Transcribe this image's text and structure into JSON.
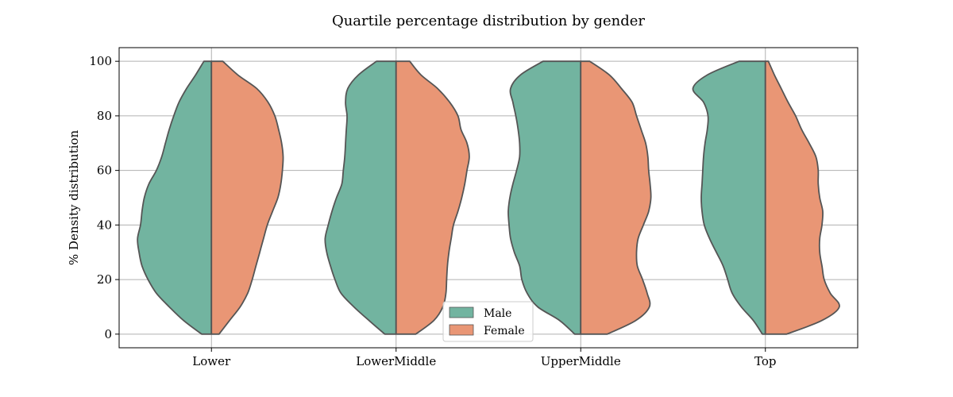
{
  "chart_data": {
    "type": "split-violin",
    "title": "Quartile percentage distribution by gender",
    "xlabel": "",
    "ylabel": "% Density distribution",
    "ylim": [
      -5,
      105
    ],
    "yticks": [
      0,
      20,
      40,
      60,
      80,
      100
    ],
    "grid": true,
    "legend_position": "bottom-center",
    "categories": [
      "Lower",
      "LowerMiddle",
      "UpperMiddle",
      "Top"
    ],
    "series": [
      {
        "name": "Male",
        "color": "#72b4a0",
        "half_width_profiles": [
          [
            [
              0,
              0.13
            ],
            [
              5,
              0.37
            ],
            [
              10,
              0.56
            ],
            [
              15,
              0.73
            ],
            [
              20,
              0.84
            ],
            [
              25,
              0.92
            ],
            [
              30,
              0.96
            ],
            [
              35,
              0.98
            ],
            [
              40,
              0.94
            ],
            [
              45,
              0.92
            ],
            [
              50,
              0.89
            ],
            [
              55,
              0.83
            ],
            [
              60,
              0.73
            ],
            [
              65,
              0.66
            ],
            [
              70,
              0.61
            ],
            [
              75,
              0.56
            ],
            [
              80,
              0.5
            ],
            [
              85,
              0.43
            ],
            [
              90,
              0.33
            ],
            [
              95,
              0.21
            ],
            [
              100,
              0.1
            ]
          ],
          [
            [
              0,
              0.15
            ],
            [
              5,
              0.36
            ],
            [
              10,
              0.56
            ],
            [
              15,
              0.73
            ],
            [
              20,
              0.81
            ],
            [
              25,
              0.87
            ],
            [
              30,
              0.92
            ],
            [
              35,
              0.94
            ],
            [
              40,
              0.9
            ],
            [
              45,
              0.85
            ],
            [
              50,
              0.79
            ],
            [
              55,
              0.72
            ],
            [
              60,
              0.7
            ],
            [
              65,
              0.68
            ],
            [
              70,
              0.67
            ],
            [
              75,
              0.66
            ],
            [
              80,
              0.65
            ],
            [
              85,
              0.67
            ],
            [
              90,
              0.64
            ],
            [
              95,
              0.5
            ],
            [
              100,
              0.26
            ]
          ],
          [
            [
              0,
              0.08
            ],
            [
              5,
              0.28
            ],
            [
              10,
              0.57
            ],
            [
              15,
              0.71
            ],
            [
              20,
              0.78
            ],
            [
              25,
              0.81
            ],
            [
              30,
              0.88
            ],
            [
              35,
              0.93
            ],
            [
              40,
              0.95
            ],
            [
              45,
              0.96
            ],
            [
              50,
              0.94
            ],
            [
              55,
              0.9
            ],
            [
              60,
              0.85
            ],
            [
              65,
              0.81
            ],
            [
              70,
              0.81
            ],
            [
              75,
              0.83
            ],
            [
              80,
              0.86
            ],
            [
              85,
              0.9
            ],
            [
              90,
              0.93
            ],
            [
              95,
              0.8
            ],
            [
              100,
              0.5
            ]
          ],
          [
            [
              0,
              0.04
            ],
            [
              5,
              0.16
            ],
            [
              10,
              0.32
            ],
            [
              15,
              0.44
            ],
            [
              20,
              0.5
            ],
            [
              25,
              0.56
            ],
            [
              30,
              0.65
            ],
            [
              35,
              0.74
            ],
            [
              40,
              0.81
            ],
            [
              45,
              0.84
            ],
            [
              50,
              0.85
            ],
            [
              55,
              0.84
            ],
            [
              60,
              0.83
            ],
            [
              65,
              0.82
            ],
            [
              70,
              0.8
            ],
            [
              75,
              0.77
            ],
            [
              80,
              0.76
            ],
            [
              85,
              0.82
            ],
            [
              90,
              0.96
            ],
            [
              95,
              0.77
            ],
            [
              100,
              0.35
            ]
          ]
        ]
      },
      {
        "name": "Female",
        "color": "#e99675",
        "half_width_profiles": [
          [
            [
              0,
              0.1
            ],
            [
              5,
              0.24
            ],
            [
              10,
              0.38
            ],
            [
              15,
              0.48
            ],
            [
              20,
              0.54
            ],
            [
              25,
              0.59
            ],
            [
              30,
              0.64
            ],
            [
              35,
              0.69
            ],
            [
              40,
              0.74
            ],
            [
              45,
              0.81
            ],
            [
              50,
              0.88
            ],
            [
              55,
              0.92
            ],
            [
              60,
              0.94
            ],
            [
              65,
              0.95
            ],
            [
              70,
              0.93
            ],
            [
              75,
              0.89
            ],
            [
              80,
              0.84
            ],
            [
              85,
              0.75
            ],
            [
              90,
              0.6
            ],
            [
              95,
              0.35
            ],
            [
              100,
              0.15
            ]
          ],
          [
            [
              0,
              0.26
            ],
            [
              5,
              0.5
            ],
            [
              10,
              0.62
            ],
            [
              15,
              0.66
            ],
            [
              20,
              0.67
            ],
            [
              25,
              0.68
            ],
            [
              30,
              0.7
            ],
            [
              35,
              0.73
            ],
            [
              40,
              0.76
            ],
            [
              45,
              0.82
            ],
            [
              50,
              0.87
            ],
            [
              55,
              0.91
            ],
            [
              60,
              0.94
            ],
            [
              65,
              0.97
            ],
            [
              70,
              0.94
            ],
            [
              75,
              0.86
            ],
            [
              80,
              0.82
            ],
            [
              85,
              0.71
            ],
            [
              90,
              0.55
            ],
            [
              95,
              0.33
            ],
            [
              100,
              0.18
            ]
          ],
          [
            [
              0,
              0.35
            ],
            [
              5,
              0.73
            ],
            [
              10,
              0.91
            ],
            [
              15,
              0.88
            ],
            [
              20,
              0.82
            ],
            [
              25,
              0.75
            ],
            [
              30,
              0.74
            ],
            [
              35,
              0.76
            ],
            [
              40,
              0.83
            ],
            [
              45,
              0.9
            ],
            [
              50,
              0.93
            ],
            [
              55,
              0.92
            ],
            [
              60,
              0.9
            ],
            [
              65,
              0.89
            ],
            [
              70,
              0.86
            ],
            [
              75,
              0.8
            ],
            [
              80,
              0.74
            ],
            [
              85,
              0.68
            ],
            [
              90,
              0.54
            ],
            [
              95,
              0.38
            ],
            [
              100,
              0.12
            ]
          ],
          [
            [
              0,
              0.28
            ],
            [
              5,
              0.75
            ],
            [
              10,
              0.98
            ],
            [
              15,
              0.86
            ],
            [
              20,
              0.78
            ],
            [
              25,
              0.75
            ],
            [
              30,
              0.72
            ],
            [
              35,
              0.72
            ],
            [
              40,
              0.75
            ],
            [
              45,
              0.76
            ],
            [
              50,
              0.72
            ],
            [
              55,
              0.7
            ],
            [
              60,
              0.7
            ],
            [
              65,
              0.67
            ],
            [
              70,
              0.58
            ],
            [
              75,
              0.48
            ],
            [
              80,
              0.4
            ],
            [
              85,
              0.3
            ],
            [
              90,
              0.21
            ],
            [
              95,
              0.12
            ],
            [
              100,
              0.04
            ]
          ]
        ]
      }
    ]
  }
}
